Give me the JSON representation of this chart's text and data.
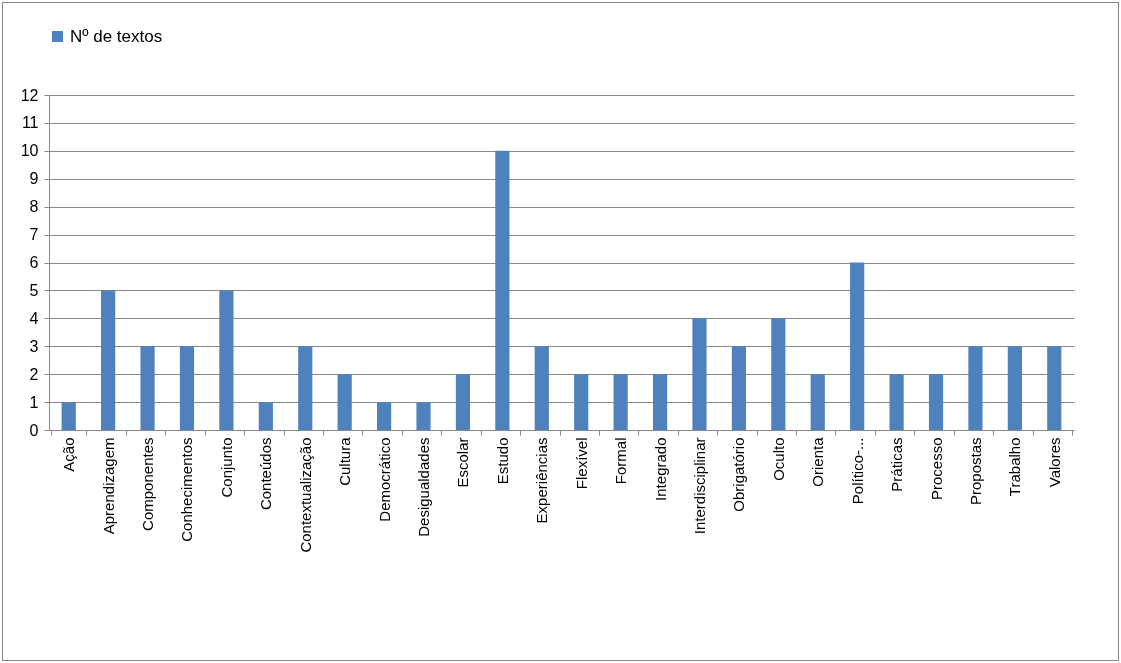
{
  "chart_data": {
    "type": "bar",
    "categories": [
      "Ação",
      "Aprendizagem",
      "Componentes",
      "Conhecimentos",
      "Conjunto",
      "Conteúdos",
      "Contextualização",
      "Cultura",
      "Democrático",
      "Desigualdades",
      "Escolar",
      "Estudo",
      "Experiências",
      "Flexível",
      "Formal",
      "Integrado",
      "Interdisciplinar",
      "Obrigatório",
      "Oculto",
      "Orienta",
      "Político-...",
      "Práticas",
      "Processo",
      "Propostas",
      "Trabalho",
      "Valores"
    ],
    "series": [
      {
        "name": "Nº de textos",
        "color": "#4f81bd",
        "values": [
          1,
          5,
          3,
          3,
          5,
          1,
          3,
          2,
          1,
          1,
          2,
          10,
          3,
          2,
          2,
          2,
          4,
          3,
          4,
          2,
          6,
          2,
          2,
          3,
          3,
          3
        ]
      }
    ],
    "ylim": [
      0,
      12
    ],
    "yticks": [
      0,
      1,
      2,
      3,
      4,
      5,
      6,
      7,
      8,
      9,
      10,
      11,
      12
    ],
    "grid": "y",
    "legend": "top"
  }
}
